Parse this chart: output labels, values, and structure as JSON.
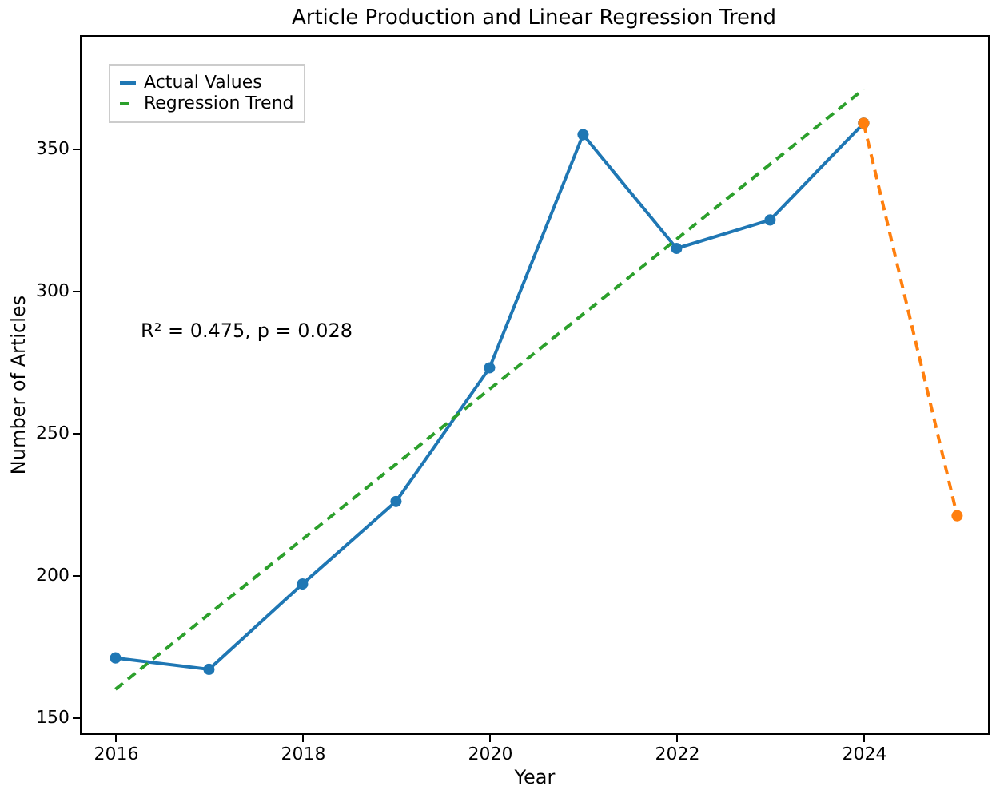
{
  "chart_data": {
    "type": "line",
    "title": "Article Production and Linear Regression Trend",
    "xlabel": "Year",
    "ylabel": "Number of Articles",
    "xlim": [
      2015.62,
      2025.33
    ],
    "ylim": [
      144.5,
      390
    ],
    "xticks": [
      2016,
      2018,
      2020,
      2022,
      2024
    ],
    "yticks": [
      150,
      200,
      250,
      300,
      350
    ],
    "grid": false,
    "legend": "top left",
    "annotations": [
      "R² = 0.475, p = 0.028"
    ],
    "series": [
      {
        "name": "Actual Values",
        "color": "#1f77b4",
        "marker": "circle",
        "line_style": "solid",
        "x": [
          2016,
          2017,
          2018,
          2019,
          2020,
          2021,
          2022,
          2023,
          2024
        ],
        "values": [
          171,
          167,
          197,
          226,
          273,
          355,
          315,
          325,
          359
        ]
      },
      {
        "name": "Regression Trend",
        "color": "#2ca02c",
        "marker": "none",
        "line_style": "dashed",
        "x": [
          2016,
          2024
        ],
        "values": [
          160,
          371
        ]
      },
      {
        "color": "#ff7f0e",
        "marker": "circle",
        "line_style": "dashed",
        "x": [
          2024,
          2025
        ],
        "values": [
          359,
          221
        ]
      }
    ]
  }
}
